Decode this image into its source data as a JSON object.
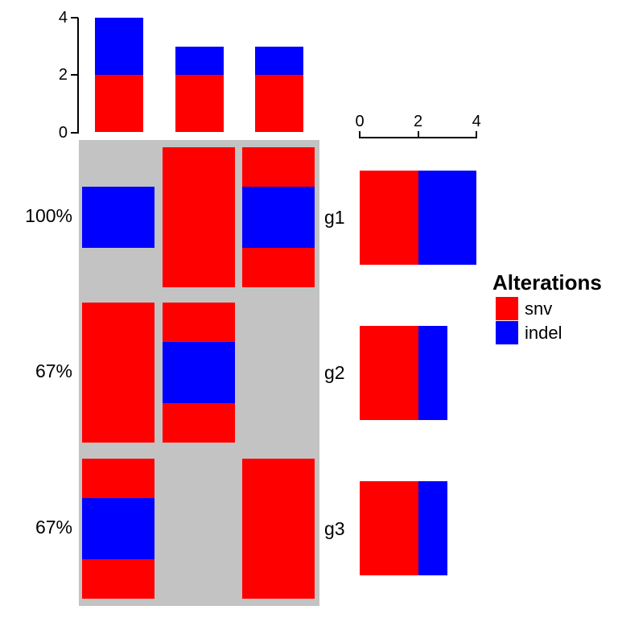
{
  "chart_data": {
    "type": "heatmap",
    "subtype": "oncoprint",
    "background_color": "#C3C3C3",
    "alterations": {
      "snv": "#FF0000",
      "indel": "#0000FF"
    },
    "rows": [
      {
        "gene": "g1",
        "percent": "100%",
        "cells": [
          [
            "indel"
          ],
          [
            "snv"
          ],
          [
            "snv",
            "indel"
          ]
        ]
      },
      {
        "gene": "g2",
        "percent": "67%",
        "cells": [
          [
            "snv"
          ],
          [
            "snv",
            "indel"
          ],
          []
        ]
      },
      {
        "gene": "g3",
        "percent": "67%",
        "cells": [
          [
            "snv",
            "indel"
          ],
          [],
          [
            "snv"
          ]
        ]
      }
    ],
    "n_columns": 3,
    "top_barplot": {
      "orientation": "vertical",
      "axis_side": "left",
      "axis_ticks": [
        "0",
        "2",
        "4"
      ],
      "axis_range": [
        0,
        4
      ],
      "series": [
        {
          "name": "snv",
          "color": "#FF0000",
          "values": [
            2,
            2,
            2
          ]
        },
        {
          "name": "indel",
          "color": "#0000FF",
          "values": [
            2,
            1,
            1
          ]
        }
      ]
    },
    "right_barplot": {
      "orientation": "horizontal",
      "axis_side": "top",
      "axis_ticks": [
        "0",
        "2",
        "4"
      ],
      "axis_range": [
        0,
        4
      ],
      "series": [
        {
          "name": "snv",
          "color": "#FF0000",
          "values": [
            2,
            2,
            2
          ]
        },
        {
          "name": "indel",
          "color": "#0000FF",
          "values": [
            2,
            1,
            1
          ]
        }
      ]
    },
    "legend": {
      "title": "Alterations",
      "position": "right",
      "items": [
        {
          "label": "snv",
          "color": "#FF0000"
        },
        {
          "label": "indel",
          "color": "#0000FF"
        }
      ]
    },
    "axis_color": "#000000"
  }
}
